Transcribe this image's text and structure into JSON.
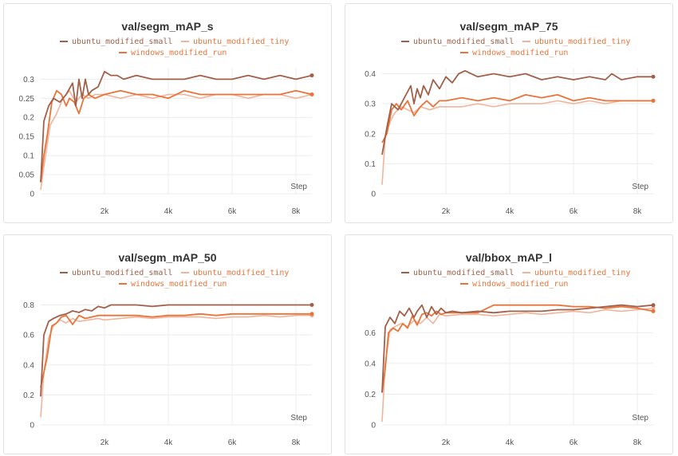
{
  "chart_data": [
    {
      "type": "line",
      "title": "val/segm_mAP_s",
      "xlabel": "Step",
      "xlim": [
        0,
        8500
      ],
      "ylim": [
        0,
        0.33
      ],
      "xticks": [
        "2k",
        "4k",
        "6k",
        "8k"
      ],
      "yticks": [
        "0",
        "0.05",
        "0.1",
        "0.15",
        "0.2",
        "0.25",
        "0.3"
      ],
      "series": [
        {
          "name": "ubuntu_modified_small",
          "color": "#a0604a",
          "x": [
            0,
            100,
            250,
            400,
            600,
            800,
            1000,
            1100,
            1200,
            1300,
            1400,
            1500,
            1600,
            1800,
            2000,
            2200,
            2400,
            2600,
            3000,
            3500,
            4000,
            4500,
            5000,
            5500,
            6000,
            6500,
            7000,
            7500,
            8000,
            8500
          ],
          "y": [
            0.03,
            0.19,
            0.23,
            0.25,
            0.24,
            0.26,
            0.29,
            0.23,
            0.3,
            0.25,
            0.3,
            0.26,
            0.27,
            0.28,
            0.32,
            0.31,
            0.31,
            0.3,
            0.31,
            0.3,
            0.3,
            0.3,
            0.31,
            0.3,
            0.3,
            0.31,
            0.3,
            0.31,
            0.3,
            0.31
          ]
        },
        {
          "name": "ubuntu_modified_tiny",
          "color": "#f0b49a",
          "x": [
            0,
            150,
            300,
            500,
            700,
            900,
            1100,
            1300,
            1500,
            1700,
            2000,
            2500,
            3000,
            3500,
            4000,
            4500,
            5000,
            5500,
            6000,
            6500,
            7000,
            7500,
            8000,
            8500
          ],
          "y": [
            0.01,
            0.1,
            0.18,
            0.21,
            0.25,
            0.27,
            0.24,
            0.26,
            0.25,
            0.26,
            0.26,
            0.25,
            0.26,
            0.25,
            0.26,
            0.26,
            0.25,
            0.26,
            0.26,
            0.25,
            0.26,
            0.26,
            0.25,
            0.26
          ]
        },
        {
          "name": "windows_modified_run",
          "color": "#e8743a",
          "x": [
            0,
            100,
            200,
            350,
            500,
            650,
            800,
            900,
            1050,
            1200,
            1350,
            1500,
            1700,
            2000,
            2500,
            3000,
            3500,
            4000,
            4500,
            5000,
            5500,
            6000,
            6500,
            7000,
            7500,
            8000,
            8500
          ],
          "y": [
            0.03,
            0.1,
            0.15,
            0.24,
            0.27,
            0.26,
            0.23,
            0.25,
            0.24,
            0.21,
            0.25,
            0.26,
            0.25,
            0.26,
            0.27,
            0.26,
            0.26,
            0.25,
            0.27,
            0.26,
            0.26,
            0.26,
            0.26,
            0.26,
            0.26,
            0.27,
            0.26
          ]
        }
      ]
    },
    {
      "type": "line",
      "title": "val/segm_mAP_75",
      "xlabel": "Step",
      "xlim": [
        0,
        8500
      ],
      "ylim": [
        0,
        0.42
      ],
      "xticks": [
        "2k",
        "4k",
        "6k",
        "8k"
      ],
      "yticks": [
        "0",
        "0.1",
        "0.2",
        "0.3",
        "0.4"
      ],
      "series": [
        {
          "name": "ubuntu_modified_small",
          "color": "#a0604a",
          "x": [
            0,
            150,
            300,
            500,
            700,
            900,
            1000,
            1100,
            1200,
            1300,
            1450,
            1600,
            1800,
            2000,
            2200,
            2400,
            2600,
            3000,
            3500,
            4000,
            4500,
            5000,
            5500,
            6000,
            6500,
            7000,
            7200,
            7500,
            8000,
            8500
          ],
          "y": [
            0.13,
            0.22,
            0.3,
            0.28,
            0.32,
            0.36,
            0.3,
            0.35,
            0.32,
            0.36,
            0.33,
            0.38,
            0.35,
            0.39,
            0.37,
            0.4,
            0.41,
            0.39,
            0.4,
            0.39,
            0.4,
            0.38,
            0.39,
            0.38,
            0.39,
            0.38,
            0.4,
            0.38,
            0.39,
            0.39
          ]
        },
        {
          "name": "ubuntu_modified_tiny",
          "color": "#f0b49a",
          "x": [
            0,
            100,
            250,
            400,
            600,
            800,
            1000,
            1200,
            1500,
            1800,
            2000,
            2500,
            3000,
            3500,
            4000,
            4500,
            5000,
            5500,
            6000,
            6500,
            7000,
            7500,
            8000,
            8500
          ],
          "y": [
            0.03,
            0.19,
            0.24,
            0.27,
            0.29,
            0.28,
            0.27,
            0.29,
            0.28,
            0.29,
            0.29,
            0.29,
            0.3,
            0.29,
            0.3,
            0.3,
            0.3,
            0.31,
            0.3,
            0.31,
            0.3,
            0.31,
            0.31,
            0.31
          ]
        },
        {
          "name": "windows_modified_run",
          "color": "#e8743a",
          "x": [
            0,
            150,
            300,
            450,
            600,
            800,
            1000,
            1200,
            1400,
            1600,
            1800,
            2000,
            2500,
            3000,
            3500,
            4000,
            4500,
            5000,
            5500,
            6000,
            6500,
            7000,
            7500,
            8000,
            8500
          ],
          "y": [
            0.17,
            0.2,
            0.28,
            0.3,
            0.28,
            0.31,
            0.26,
            0.29,
            0.31,
            0.29,
            0.31,
            0.31,
            0.32,
            0.31,
            0.32,
            0.31,
            0.33,
            0.32,
            0.33,
            0.31,
            0.32,
            0.31,
            0.31,
            0.31,
            0.31
          ]
        }
      ]
    },
    {
      "type": "line",
      "title": "val/segm_mAP_50",
      "xlabel": "Step",
      "xlim": [
        0,
        8500
      ],
      "ylim": [
        0,
        0.84
      ],
      "xticks": [
        "2k",
        "4k",
        "6k",
        "8k"
      ],
      "yticks": [
        "0",
        "0.2",
        "0.4",
        "0.6",
        "0.8"
      ],
      "series": [
        {
          "name": "ubuntu_modified_small",
          "color": "#a0604a",
          "x": [
            0,
            100,
            250,
            400,
            600,
            800,
            1000,
            1200,
            1400,
            1600,
            1800,
            2000,
            2200,
            2500,
            3000,
            3500,
            4000,
            4500,
            5000,
            5500,
            6000,
            6500,
            7000,
            7500,
            8000,
            8500
          ],
          "y": [
            0.19,
            0.6,
            0.69,
            0.71,
            0.73,
            0.74,
            0.76,
            0.75,
            0.77,
            0.76,
            0.79,
            0.78,
            0.8,
            0.8,
            0.8,
            0.79,
            0.8,
            0.8,
            0.8,
            0.8,
            0.8,
            0.8,
            0.8,
            0.8,
            0.8,
            0.8
          ]
        },
        {
          "name": "ubuntu_modified_tiny",
          "color": "#f0b49a",
          "x": [
            0,
            100,
            250,
            400,
            600,
            800,
            1000,
            1200,
            1500,
            1800,
            2000,
            2500,
            3000,
            3500,
            4000,
            4500,
            5000,
            5500,
            6000,
            6500,
            7000,
            7500,
            8000,
            8500
          ],
          "y": [
            0.05,
            0.35,
            0.58,
            0.66,
            0.7,
            0.68,
            0.71,
            0.69,
            0.7,
            0.71,
            0.7,
            0.71,
            0.72,
            0.71,
            0.72,
            0.72,
            0.72,
            0.71,
            0.72,
            0.72,
            0.73,
            0.72,
            0.73,
            0.73
          ]
        },
        {
          "name": "windows_modified_run",
          "color": "#e8743a",
          "x": [
            0,
            100,
            200,
            350,
            500,
            650,
            800,
            1000,
            1200,
            1400,
            1600,
            1800,
            2000,
            2500,
            3000,
            3500,
            4000,
            4500,
            5000,
            5500,
            6000,
            6500,
            7000,
            7500,
            8000,
            8500
          ],
          "y": [
            0.25,
            0.35,
            0.45,
            0.66,
            0.68,
            0.72,
            0.73,
            0.67,
            0.73,
            0.71,
            0.72,
            0.73,
            0.73,
            0.73,
            0.73,
            0.72,
            0.73,
            0.73,
            0.74,
            0.73,
            0.74,
            0.74,
            0.74,
            0.74,
            0.74,
            0.74
          ]
        }
      ]
    },
    {
      "type": "line",
      "title": "val/bbox_mAP_l",
      "xlabel": "Step",
      "xlim": [
        0,
        8500
      ],
      "ylim": [
        0,
        0.82
      ],
      "xticks": [
        "2k",
        "4k",
        "6k",
        "8k"
      ],
      "yticks": [
        "0",
        "0.2",
        "0.4",
        "0.6"
      ],
      "series": [
        {
          "name": "ubuntu_modified_small",
          "color": "#a0604a",
          "x": [
            0,
            100,
            250,
            400,
            550,
            700,
            850,
            1000,
            1100,
            1250,
            1400,
            1550,
            1700,
            1850,
            2000,
            2200,
            2500,
            3000,
            3500,
            4000,
            4500,
            5000,
            5500,
            6000,
            6500,
            7000,
            7500,
            8000,
            8500
          ],
          "y": [
            0.21,
            0.64,
            0.7,
            0.66,
            0.74,
            0.71,
            0.76,
            0.7,
            0.74,
            0.78,
            0.7,
            0.77,
            0.72,
            0.76,
            0.73,
            0.74,
            0.73,
            0.74,
            0.73,
            0.74,
            0.74,
            0.74,
            0.75,
            0.75,
            0.76,
            0.77,
            0.78,
            0.77,
            0.78
          ]
        },
        {
          "name": "ubuntu_modified_tiny",
          "color": "#f0b49a",
          "x": [
            0,
            100,
            250,
            400,
            600,
            800,
            1000,
            1200,
            1400,
            1600,
            1800,
            2000,
            2500,
            3000,
            3500,
            4000,
            4500,
            5000,
            5500,
            6000,
            6500,
            7000,
            7500,
            8000,
            8500
          ],
          "y": [
            0.02,
            0.4,
            0.62,
            0.64,
            0.66,
            0.64,
            0.68,
            0.66,
            0.7,
            0.66,
            0.72,
            0.71,
            0.72,
            0.72,
            0.71,
            0.72,
            0.73,
            0.72,
            0.73,
            0.74,
            0.73,
            0.75,
            0.74,
            0.75,
            0.76
          ]
        },
        {
          "name": "windows_modified_run",
          "color": "#e8743a",
          "x": [
            0,
            100,
            200,
            350,
            500,
            650,
            800,
            950,
            1100,
            1250,
            1400,
            1550,
            1700,
            1850,
            2000,
            2300,
            2600,
            3000,
            3500,
            4000,
            4500,
            5000,
            5500,
            6000,
            6500,
            7000,
            7500,
            8000,
            8500
          ],
          "y": [
            0.21,
            0.37,
            0.6,
            0.63,
            0.61,
            0.66,
            0.63,
            0.71,
            0.65,
            0.72,
            0.73,
            0.71,
            0.74,
            0.72,
            0.73,
            0.73,
            0.73,
            0.73,
            0.78,
            0.78,
            0.78,
            0.78,
            0.78,
            0.77,
            0.77,
            0.76,
            0.77,
            0.76,
            0.74
          ]
        }
      ]
    }
  ]
}
